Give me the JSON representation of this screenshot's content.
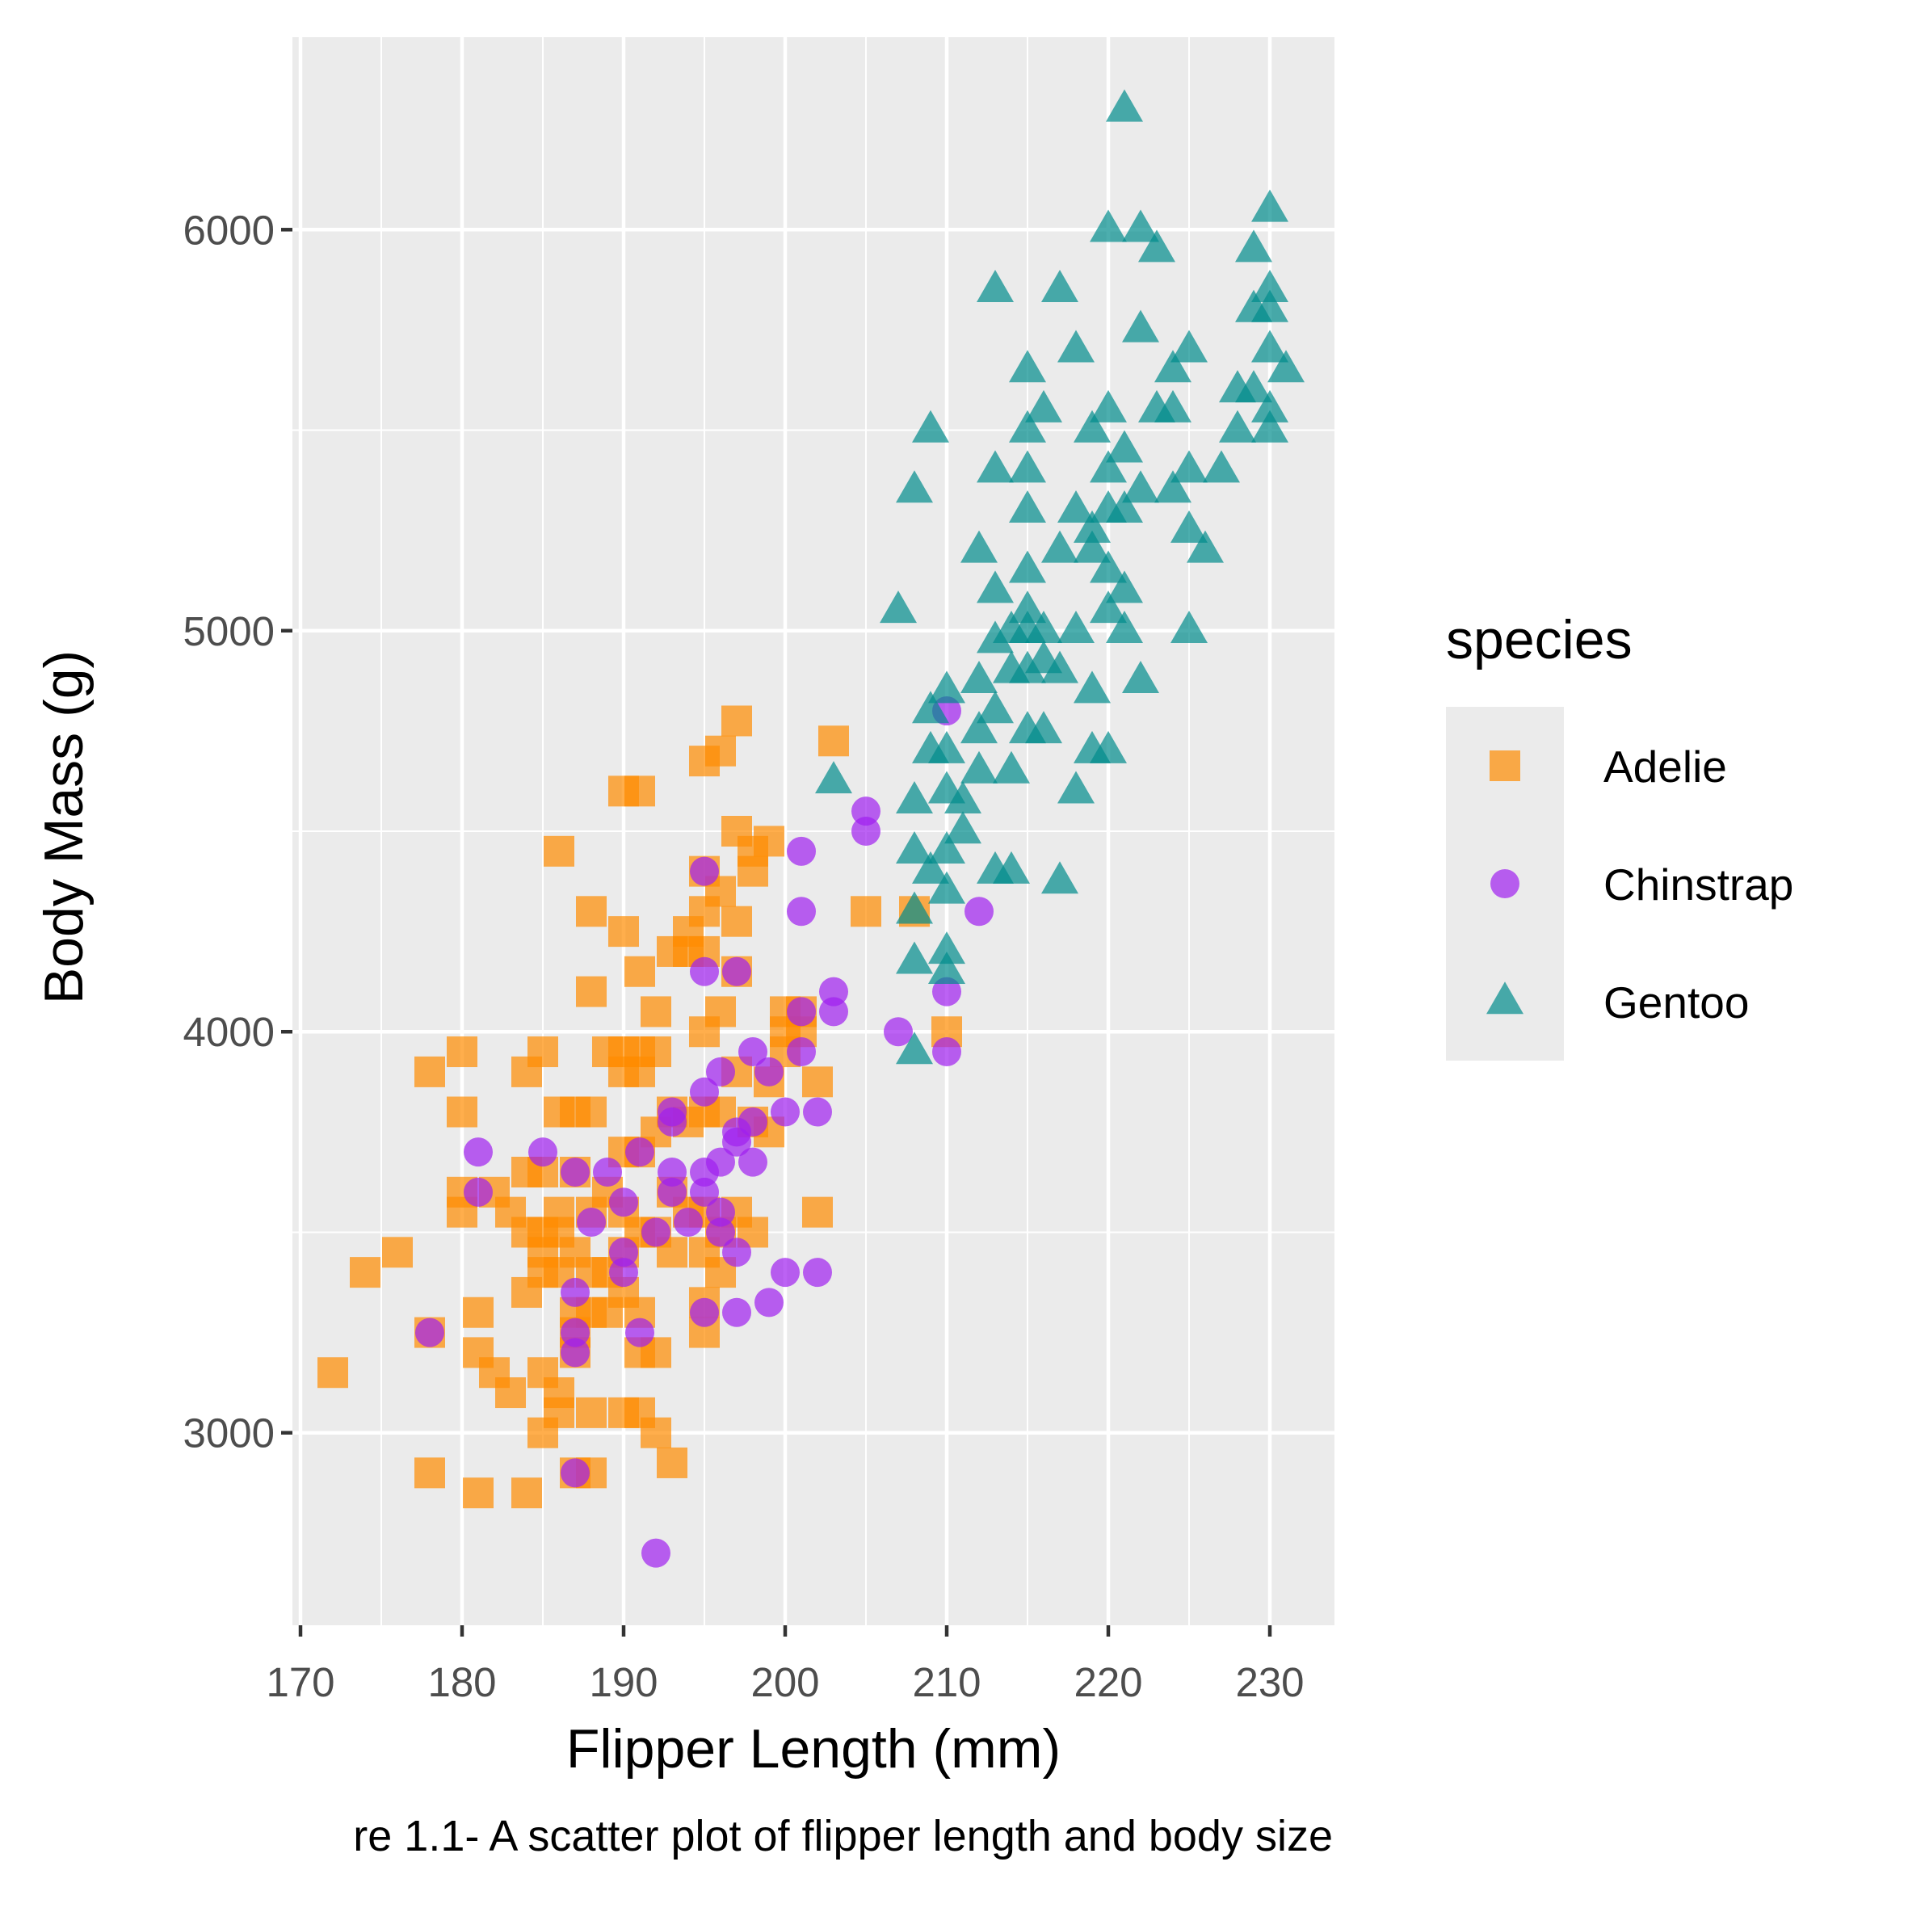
{
  "chart_data": {
    "type": "scatter",
    "xlabel": "Flipper Length (mm)",
    "ylabel": "Body Mass (g)",
    "caption": "re 1.1- A scatter plot of flipper length and body size",
    "xlim": [
      169.5,
      234
    ],
    "ylim": [
      2520,
      6480
    ],
    "x_ticks": [
      170,
      180,
      190,
      200,
      210,
      220,
      230
    ],
    "y_ticks": [
      3000,
      4000,
      5000,
      6000
    ],
    "grid": true,
    "legend": {
      "title": "species",
      "position": "right"
    },
    "series": [
      {
        "name": "Adelie",
        "color": "#FF8C00",
        "shape": "square",
        "points": [
          [
            172,
            3150
          ],
          [
            174,
            3400
          ],
          [
            176,
            3450
          ],
          [
            178,
            3900
          ],
          [
            178,
            3250
          ],
          [
            178,
            2900
          ],
          [
            180,
            3950
          ],
          [
            180,
            3800
          ],
          [
            180,
            3600
          ],
          [
            180,
            3550
          ],
          [
            181,
            3300
          ],
          [
            181,
            3200
          ],
          [
            181,
            2850
          ],
          [
            182,
            3600
          ],
          [
            182,
            3150
          ],
          [
            183,
            3550
          ],
          [
            183,
            3100
          ],
          [
            184,
            3900
          ],
          [
            184,
            3650
          ],
          [
            184,
            3500
          ],
          [
            184,
            3350
          ],
          [
            184,
            2850
          ],
          [
            185,
            3950
          ],
          [
            185,
            3650
          ],
          [
            185,
            3500
          ],
          [
            185,
            3450
          ],
          [
            185,
            3400
          ],
          [
            185,
            3150
          ],
          [
            185,
            3000
          ],
          [
            186,
            4450
          ],
          [
            186,
            3800
          ],
          [
            186,
            3550
          ],
          [
            186,
            3500
          ],
          [
            186,
            3400
          ],
          [
            186,
            3100
          ],
          [
            186,
            3050
          ],
          [
            187,
            3800
          ],
          [
            187,
            3650
          ],
          [
            187,
            3450
          ],
          [
            187,
            3300
          ],
          [
            187,
            3250
          ],
          [
            187,
            3200
          ],
          [
            187,
            2900
          ],
          [
            188,
            4300
          ],
          [
            188,
            4100
          ],
          [
            188,
            3800
          ],
          [
            188,
            3550
          ],
          [
            188,
            3400
          ],
          [
            188,
            3300
          ],
          [
            188,
            3050
          ],
          [
            188,
            2900
          ],
          [
            189,
            3950
          ],
          [
            189,
            3600
          ],
          [
            189,
            3400
          ],
          [
            189,
            3300
          ],
          [
            190,
            4600
          ],
          [
            190,
            4250
          ],
          [
            190,
            3950
          ],
          [
            190,
            3900
          ],
          [
            190,
            3700
          ],
          [
            190,
            3550
          ],
          [
            190,
            3450
          ],
          [
            190,
            3350
          ],
          [
            190,
            3050
          ],
          [
            191,
            4600
          ],
          [
            191,
            4150
          ],
          [
            191,
            3950
          ],
          [
            191,
            3900
          ],
          [
            191,
            3700
          ],
          [
            191,
            3500
          ],
          [
            191,
            3300
          ],
          [
            191,
            3200
          ],
          [
            191,
            3050
          ],
          [
            192,
            4050
          ],
          [
            192,
            3950
          ],
          [
            192,
            3750
          ],
          [
            192,
            3500
          ],
          [
            192,
            3200
          ],
          [
            192,
            3000
          ],
          [
            193,
            4200
          ],
          [
            193,
            3800
          ],
          [
            193,
            3600
          ],
          [
            193,
            3450
          ],
          [
            193,
            2925
          ],
          [
            194,
            4250
          ],
          [
            194,
            4200
          ],
          [
            194,
            3775
          ],
          [
            194,
            3550
          ],
          [
            195,
            4675
          ],
          [
            195,
            4400
          ],
          [
            195,
            4300
          ],
          [
            195,
            4200
          ],
          [
            195,
            4000
          ],
          [
            195,
            3800
          ],
          [
            195,
            3550
          ],
          [
            195,
            3450
          ],
          [
            195,
            3325
          ],
          [
            195,
            3250
          ],
          [
            196,
            4700
          ],
          [
            196,
            4350
          ],
          [
            196,
            4050
          ],
          [
            196,
            3800
          ],
          [
            196,
            3500
          ],
          [
            196,
            3400
          ],
          [
            197,
            4775
          ],
          [
            197,
            4500
          ],
          [
            197,
            4275
          ],
          [
            197,
            4150
          ],
          [
            197,
            3900
          ],
          [
            197,
            3550
          ],
          [
            198,
            4450
          ],
          [
            198,
            4400
          ],
          [
            198,
            3775
          ],
          [
            198,
            3500
          ],
          [
            199,
            4475
          ],
          [
            199,
            3875
          ],
          [
            199,
            3750
          ],
          [
            200,
            4050
          ],
          [
            200,
            4000
          ],
          [
            200,
            3950
          ],
          [
            201,
            4050
          ],
          [
            201,
            4000
          ],
          [
            202,
            3875
          ],
          [
            202,
            3550
          ],
          [
            203,
            4725
          ],
          [
            205,
            4300
          ],
          [
            208,
            4300
          ],
          [
            210,
            4000
          ]
        ]
      },
      {
        "name": "Chinstrap",
        "color": "#A020F0",
        "shape": "circle",
        "points": [
          [
            178,
            3250
          ],
          [
            181,
            3700
          ],
          [
            181,
            3600
          ],
          [
            185,
            3700
          ],
          [
            187,
            3650
          ],
          [
            187,
            3350
          ],
          [
            187,
            3250
          ],
          [
            187,
            3200
          ],
          [
            187,
            2900
          ],
          [
            188,
            3525
          ],
          [
            189,
            3650
          ],
          [
            190,
            3575
          ],
          [
            190,
            3450
          ],
          [
            190,
            3400
          ],
          [
            191,
            3700
          ],
          [
            191,
            3250
          ],
          [
            192,
            3500
          ],
          [
            192,
            2700
          ],
          [
            193,
            3800
          ],
          [
            193,
            3775
          ],
          [
            193,
            3650
          ],
          [
            193,
            3600
          ],
          [
            194,
            3525
          ],
          [
            195,
            4400
          ],
          [
            195,
            4150
          ],
          [
            195,
            3850
          ],
          [
            195,
            3650
          ],
          [
            195,
            3600
          ],
          [
            195,
            3300
          ],
          [
            196,
            3900
          ],
          [
            196,
            3675
          ],
          [
            196,
            3550
          ],
          [
            196,
            3500
          ],
          [
            197,
            4150
          ],
          [
            197,
            3750
          ],
          [
            197,
            3725
          ],
          [
            197,
            3450
          ],
          [
            197,
            3300
          ],
          [
            198,
            3950
          ],
          [
            198,
            3775
          ],
          [
            198,
            3675
          ],
          [
            199,
            3900
          ],
          [
            199,
            3325
          ],
          [
            200,
            3800
          ],
          [
            200,
            3400
          ],
          [
            201,
            4450
          ],
          [
            201,
            4300
          ],
          [
            201,
            4050
          ],
          [
            201,
            3950
          ],
          [
            202,
            3800
          ],
          [
            202,
            3400
          ],
          [
            203,
            4100
          ],
          [
            203,
            4050
          ],
          [
            205,
            4550
          ],
          [
            205,
            4500
          ],
          [
            207,
            4000
          ],
          [
            210,
            4800
          ],
          [
            210,
            4100
          ],
          [
            210,
            3950
          ],
          [
            212,
            4300
          ]
        ]
      },
      {
        "name": "Gentoo",
        "color": "#008B8B",
        "shape": "triangle",
        "points": [
          [
            203,
            4625
          ],
          [
            207,
            5050
          ],
          [
            208,
            5350
          ],
          [
            208,
            4575
          ],
          [
            208,
            4450
          ],
          [
            208,
            4300
          ],
          [
            208,
            4175
          ],
          [
            208,
            3950
          ],
          [
            209,
            5500
          ],
          [
            209,
            4800
          ],
          [
            209,
            4700
          ],
          [
            209,
            4400
          ],
          [
            210,
            4850
          ],
          [
            210,
            4700
          ],
          [
            210,
            4600
          ],
          [
            210,
            4450
          ],
          [
            210,
            4350
          ],
          [
            210,
            4200
          ],
          [
            210,
            4150
          ],
          [
            211,
            4575
          ],
          [
            211,
            4500
          ],
          [
            212,
            5200
          ],
          [
            212,
            4875
          ],
          [
            212,
            4750
          ],
          [
            212,
            4650
          ],
          [
            213,
            5850
          ],
          [
            213,
            5400
          ],
          [
            213,
            5100
          ],
          [
            213,
            4975
          ],
          [
            213,
            4800
          ],
          [
            213,
            4400
          ],
          [
            214,
            5000
          ],
          [
            214,
            4900
          ],
          [
            214,
            4650
          ],
          [
            214,
            4400
          ],
          [
            215,
            5650
          ],
          [
            215,
            5500
          ],
          [
            215,
            5400
          ],
          [
            215,
            5300
          ],
          [
            215,
            5150
          ],
          [
            215,
            5050
          ],
          [
            215,
            5000
          ],
          [
            215,
            4900
          ],
          [
            215,
            4750
          ],
          [
            216,
            5550
          ],
          [
            216,
            5000
          ],
          [
            216,
            4925
          ],
          [
            216,
            4750
          ],
          [
            217,
            5850
          ],
          [
            217,
            5200
          ],
          [
            217,
            4900
          ],
          [
            217,
            4375
          ],
          [
            218,
            5700
          ],
          [
            218,
            5300
          ],
          [
            218,
            5000
          ],
          [
            218,
            4600
          ],
          [
            219,
            5500
          ],
          [
            219,
            5250
          ],
          [
            219,
            5200
          ],
          [
            219,
            4850
          ],
          [
            219,
            4700
          ],
          [
            220,
            6000
          ],
          [
            220,
            5550
          ],
          [
            220,
            5400
          ],
          [
            220,
            5300
          ],
          [
            220,
            5150
          ],
          [
            220,
            5050
          ],
          [
            220,
            4700
          ],
          [
            221,
            6300
          ],
          [
            221,
            5450
          ],
          [
            221,
            5300
          ],
          [
            221,
            5100
          ],
          [
            221,
            5000
          ],
          [
            222,
            6000
          ],
          [
            222,
            5750
          ],
          [
            222,
            5350
          ],
          [
            222,
            4875
          ],
          [
            223,
            5950
          ],
          [
            223,
            5550
          ],
          [
            224,
            5650
          ],
          [
            224,
            5550
          ],
          [
            224,
            5350
          ],
          [
            225,
            5700
          ],
          [
            225,
            5400
          ],
          [
            225,
            5250
          ],
          [
            225,
            5000
          ],
          [
            226,
            5200
          ],
          [
            227,
            5400
          ],
          [
            228,
            5600
          ],
          [
            228,
            5500
          ],
          [
            229,
            5950
          ],
          [
            229,
            5800
          ],
          [
            229,
            5600
          ],
          [
            230,
            6050
          ],
          [
            230,
            5850
          ],
          [
            230,
            5800
          ],
          [
            230,
            5700
          ],
          [
            230,
            5550
          ],
          [
            230,
            5500
          ],
          [
            231,
            5650
          ]
        ]
      }
    ]
  }
}
